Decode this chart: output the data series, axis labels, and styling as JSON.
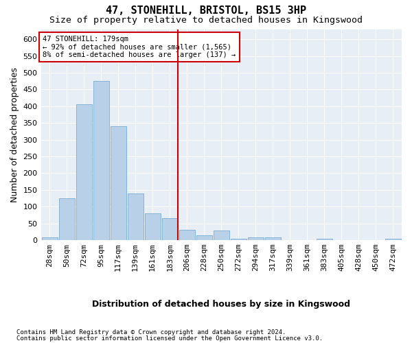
{
  "title": "47, STONEHILL, BRISTOL, BS15 3HP",
  "subtitle": "Size of property relative to detached houses in Kingswood",
  "xlabel": "Distribution of detached houses by size in Kingswood",
  "ylabel": "Number of detached properties",
  "categories": [
    "28sqm",
    "50sqm",
    "72sqm",
    "95sqm",
    "117sqm",
    "139sqm",
    "161sqm",
    "183sqm",
    "206sqm",
    "228sqm",
    "250sqm",
    "272sqm",
    "294sqm",
    "317sqm",
    "339sqm",
    "361sqm",
    "383sqm",
    "405sqm",
    "428sqm",
    "450sqm",
    "472sqm"
  ],
  "values": [
    8,
    125,
    405,
    475,
    340,
    140,
    80,
    65,
    30,
    15,
    28,
    5,
    8,
    8,
    0,
    0,
    5,
    0,
    0,
    0,
    5
  ],
  "bar_color": "#b8d0e8",
  "bar_edge_color": "#7aadd4",
  "marker_color": "#cc0000",
  "annotation_text": "47 STONEHILL: 179sqm\n← 92% of detached houses are smaller (1,565)\n8% of semi-detached houses are larger (137) →",
  "annotation_box_color": "#ffffff",
  "annotation_box_edge": "#cc0000",
  "ylim": [
    0,
    630
  ],
  "yticks": [
    0,
    50,
    100,
    150,
    200,
    250,
    300,
    350,
    400,
    450,
    500,
    550,
    600
  ],
  "footnote1": "Contains HM Land Registry data © Crown copyright and database right 2024.",
  "footnote2": "Contains public sector information licensed under the Open Government Licence v3.0.",
  "fig_bg_color": "#ffffff",
  "plot_bg_color": "#e8eef5",
  "grid_color": "#ffffff",
  "title_fontsize": 11,
  "subtitle_fontsize": 9.5,
  "axis_label_fontsize": 9,
  "tick_fontsize": 8,
  "footnote_fontsize": 6.5
}
